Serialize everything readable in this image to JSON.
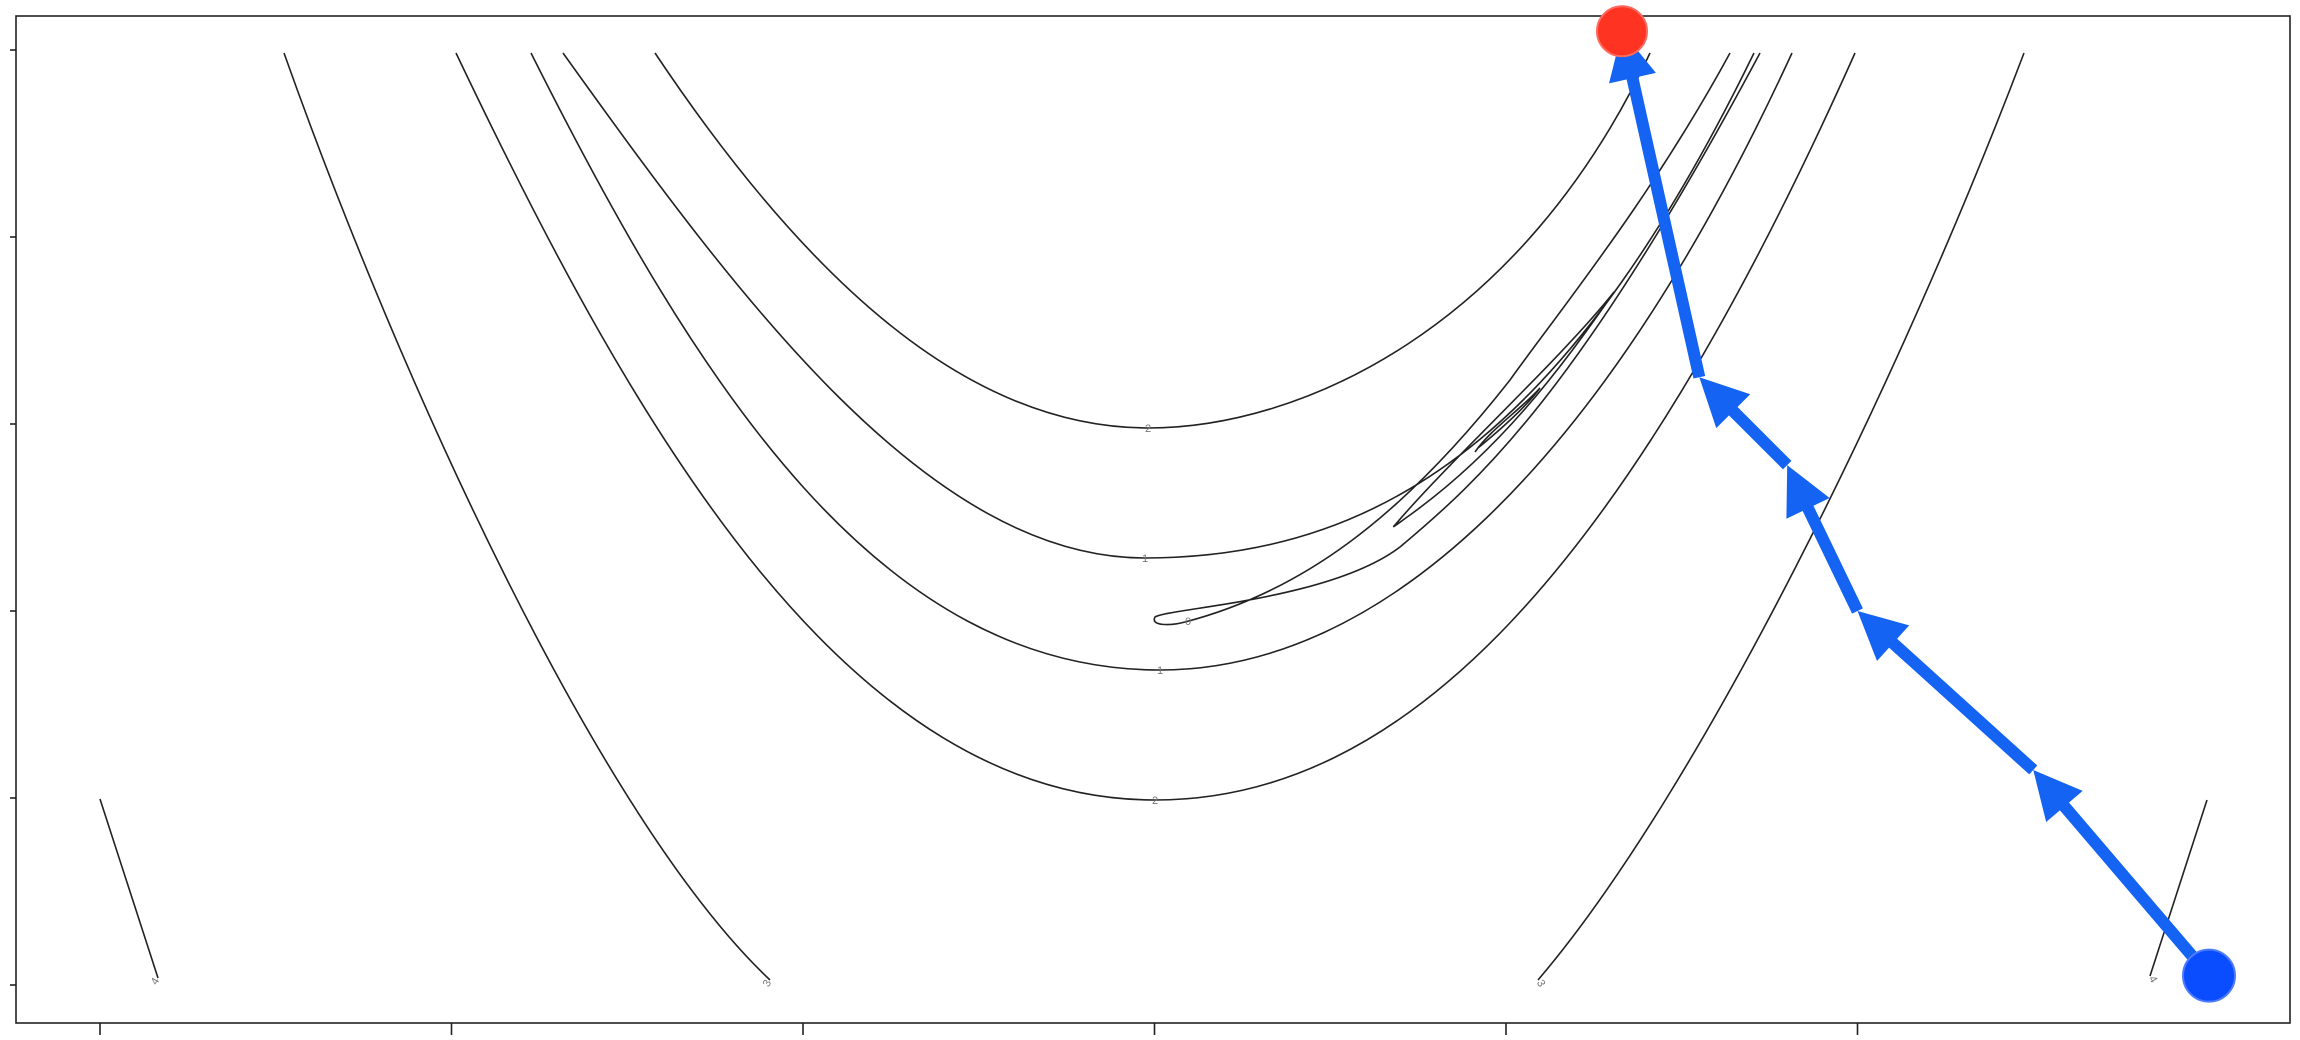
{
  "chart_data": {
    "type": "contour",
    "title": "",
    "xlabel": "",
    "ylabel": "",
    "xlim": [
      -2,
      4.75
    ],
    "ylim": [
      -2.2,
      3.2
    ],
    "xticks": [
      -2,
      -1,
      0,
      1,
      2,
      3
    ],
    "yticks": [
      -2,
      -1,
      0,
      1,
      2,
      3
    ],
    "tick_labels_visible": false,
    "grid": false,
    "contour_levels": [
      {
        "level": "4",
        "label": "4"
      },
      {
        "level": "3",
        "label": "3"
      },
      {
        "level": "2",
        "label": "2"
      },
      {
        "level": "1",
        "label": "1"
      },
      {
        "level": "0",
        "label": "0"
      }
    ],
    "optimization_path": [
      {
        "x": 4.0,
        "y": -1.95
      },
      {
        "x": 3.5,
        "y": -0.85
      },
      {
        "x": 3.0,
        "y": 0.0
      },
      {
        "x": 2.8,
        "y": 0.78
      },
      {
        "x": 2.55,
        "y": 1.25
      },
      {
        "x": 2.33,
        "y": 3.1
      }
    ],
    "start_point": {
      "x": 4.0,
      "y": -1.95,
      "color": "#0a4cff"
    },
    "end_point": {
      "x": 2.33,
      "y": 3.1,
      "color": "#ff3322"
    },
    "colors": {
      "path": "#1463f3",
      "contour": "#222222",
      "label": "#777777"
    }
  }
}
